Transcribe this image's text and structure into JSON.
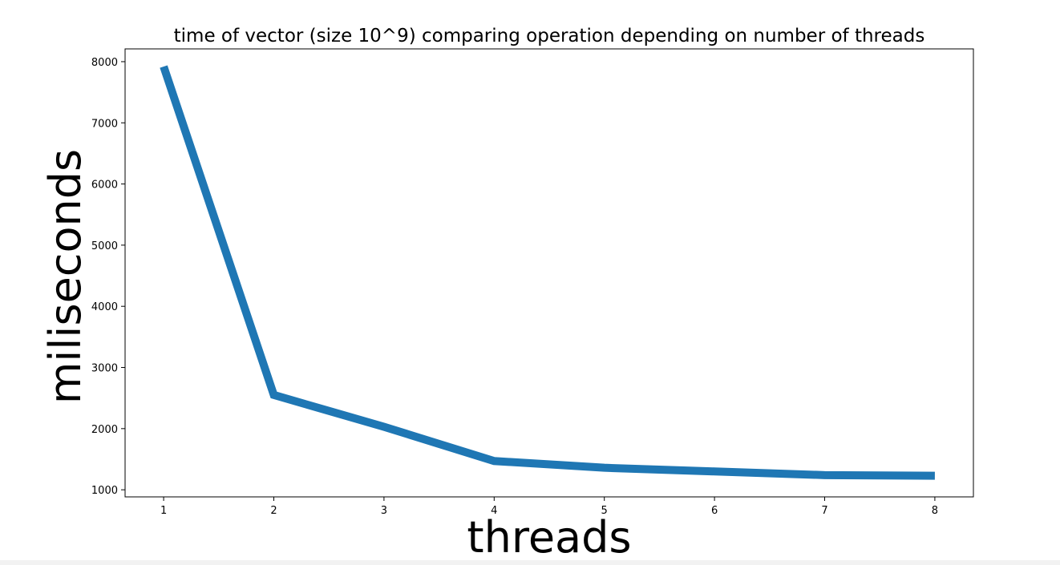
{
  "chart_data": {
    "type": "line",
    "title": "time of vector (size 10^9) comparing operation depending on number of threads",
    "xlabel": "threads",
    "ylabel": "miliseconds",
    "x": [
      1,
      2,
      3,
      4,
      5,
      6,
      7,
      8
    ],
    "series": [
      {
        "values": [
          7920,
          2550,
          2030,
          1470,
          1360,
          1300,
          1240,
          1230
        ],
        "color": "#1f77b4"
      }
    ],
    "xticks": [
      "1",
      "2",
      "3",
      "4",
      "5",
      "6",
      "7",
      "8"
    ],
    "yticks": [
      "1000",
      "2000",
      "3000",
      "4000",
      "5000",
      "6000",
      "7000",
      "8000"
    ],
    "xlim": [
      0.65,
      8.35
    ],
    "ylim": [
      884,
      8209
    ],
    "grid": false,
    "legend": "none"
  }
}
